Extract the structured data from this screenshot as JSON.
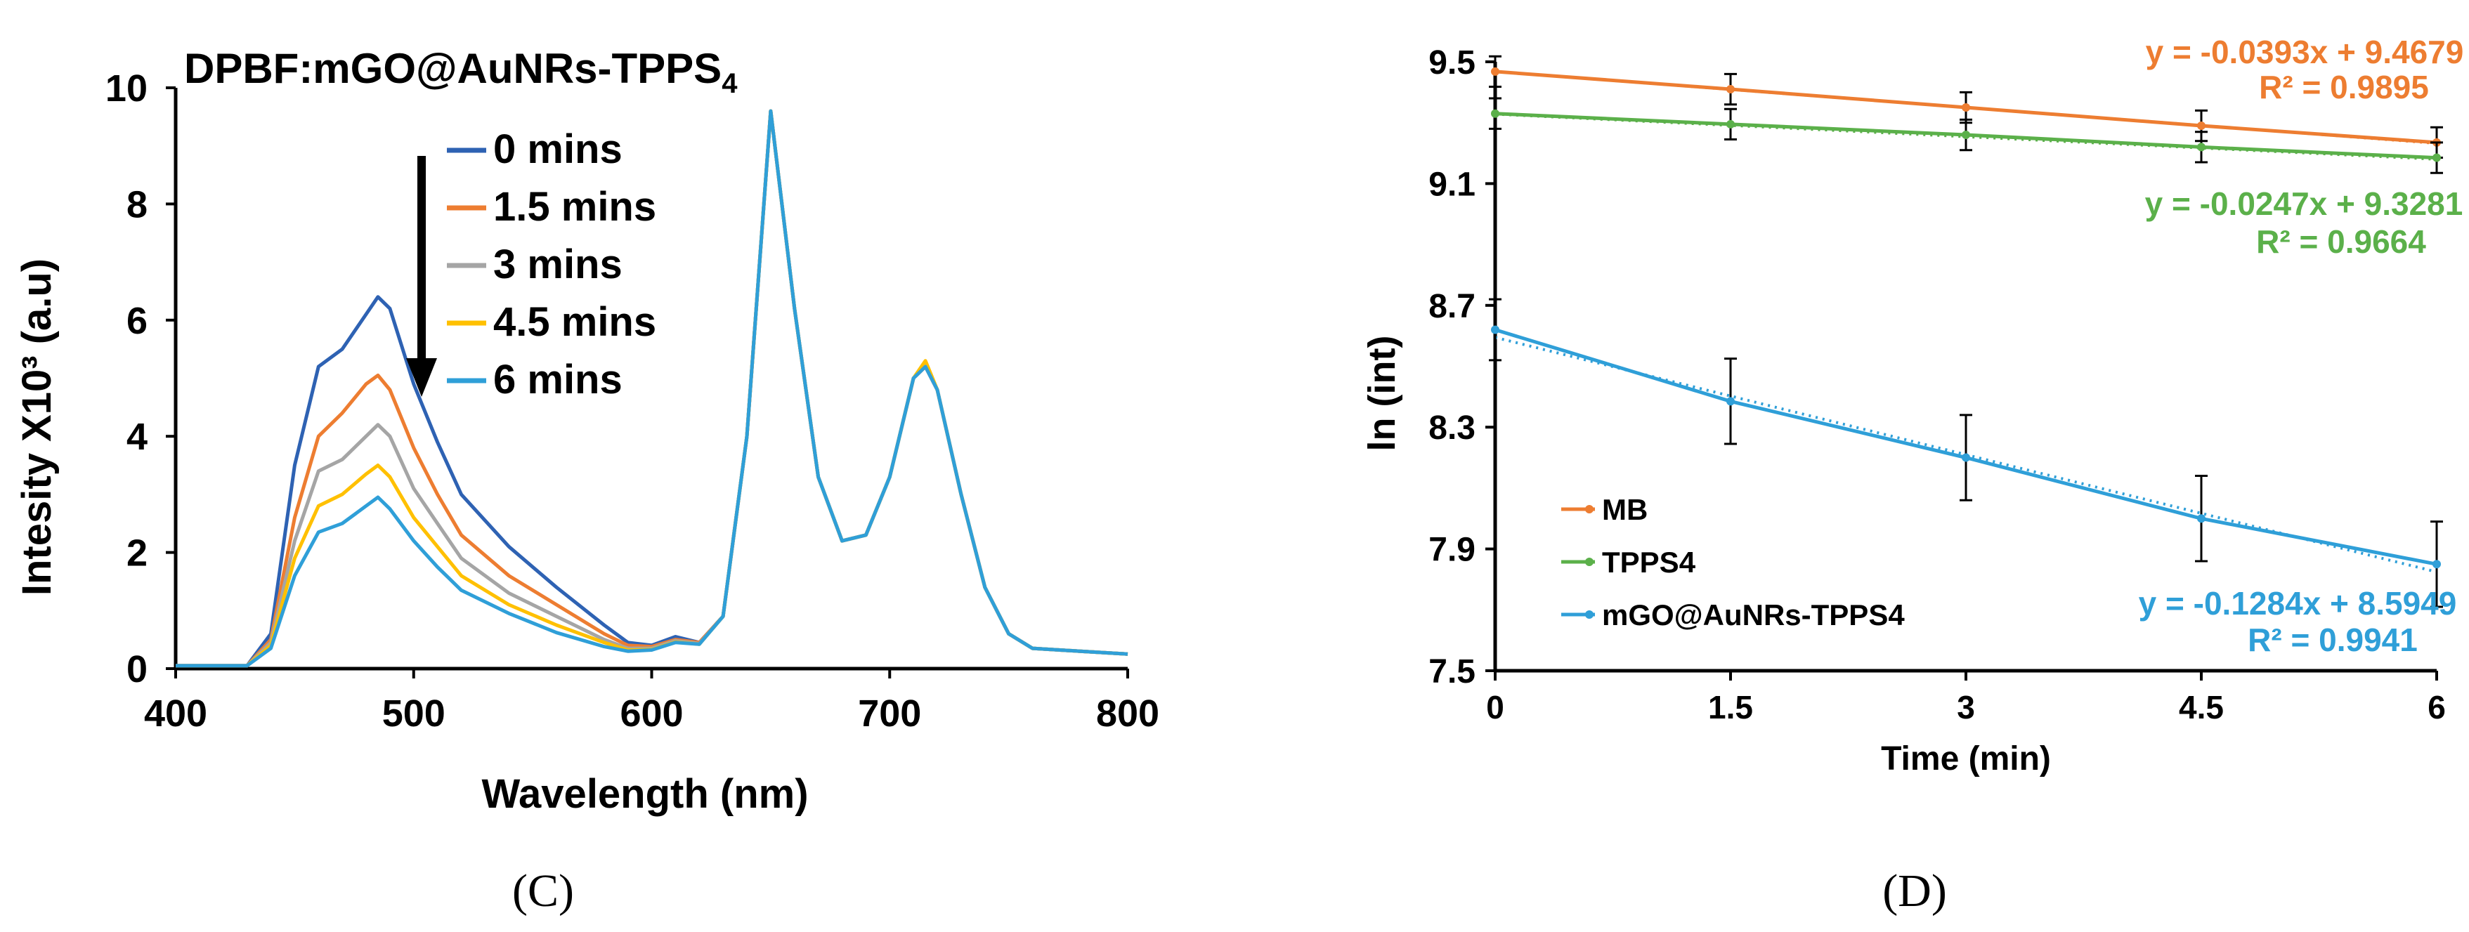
{
  "chart_data": [
    {
      "type": "line",
      "panel_label": "(C)",
      "title": "DPBF:mGO@AuNRs-TPPS",
      "title_subscript": "4",
      "xlabel": "Wavelength (nm)",
      "ylabel": "Intesity X10³ (a.u)",
      "xlim": [
        400,
        800
      ],
      "ylim": [
        0,
        10
      ],
      "xticks": [
        "400",
        "500",
        "600",
        "700",
        "800"
      ],
      "yticks": [
        "0",
        "2",
        "4",
        "6",
        "8",
        "10"
      ],
      "legend": {
        "placement": "upper-middle",
        "arrow": "down"
      },
      "series": [
        {
          "name": "0 mins",
          "color": "#2E62B3",
          "x": [
            400,
            430,
            440,
            450,
            460,
            470,
            480,
            485,
            490,
            500,
            510,
            520,
            540,
            560,
            580,
            590,
            600,
            610,
            620,
            630,
            640,
            650,
            660,
            670,
            680,
            690,
            700,
            710,
            715,
            720,
            730,
            740,
            750,
            760,
            780,
            800
          ],
          "y": [
            0.05,
            0.05,
            0.6,
            3.5,
            5.2,
            5.5,
            6.1,
            6.4,
            6.2,
            4.9,
            3.9,
            3.0,
            2.1,
            1.4,
            0.75,
            0.45,
            0.4,
            0.55,
            0.45,
            0.9,
            4.0,
            9.6,
            6.2,
            3.3,
            2.2,
            2.3,
            3.3,
            5.0,
            5.2,
            4.8,
            3.0,
            1.4,
            0.6,
            0.35,
            0.3,
            0.25
          ]
        },
        {
          "name": "1.5 mins",
          "color": "#ED7D31",
          "x": [
            400,
            430,
            440,
            450,
            460,
            470,
            480,
            485,
            490,
            500,
            510,
            520,
            540,
            560,
            580,
            590,
            600,
            610,
            620,
            630,
            640,
            650,
            660,
            670,
            680,
            690,
            700,
            710,
            715,
            720,
            730,
            740,
            750,
            760,
            780,
            800
          ],
          "y": [
            0.05,
            0.05,
            0.5,
            2.6,
            4.0,
            4.4,
            4.9,
            5.05,
            4.8,
            3.8,
            3.0,
            2.3,
            1.6,
            1.1,
            0.6,
            0.4,
            0.38,
            0.5,
            0.45,
            0.9,
            4.0,
            9.6,
            6.2,
            3.3,
            2.2,
            2.3,
            3.3,
            5.0,
            5.2,
            4.8,
            3.0,
            1.4,
            0.6,
            0.35,
            0.3,
            0.25
          ]
        },
        {
          "name": "3 mins",
          "color": "#A5A5A5",
          "x": [
            400,
            430,
            440,
            450,
            460,
            470,
            480,
            485,
            490,
            500,
            510,
            520,
            540,
            560,
            580,
            590,
            600,
            610,
            620,
            630,
            640,
            650,
            660,
            670,
            680,
            690,
            700,
            710,
            715,
            720,
            730,
            740,
            750,
            760,
            780,
            800
          ],
          "y": [
            0.05,
            0.05,
            0.45,
            2.2,
            3.4,
            3.6,
            4.0,
            4.2,
            4.0,
            3.1,
            2.5,
            1.9,
            1.3,
            0.9,
            0.5,
            0.35,
            0.35,
            0.48,
            0.43,
            0.9,
            4.0,
            9.6,
            6.2,
            3.3,
            2.2,
            2.3,
            3.3,
            5.0,
            5.2,
            4.8,
            3.0,
            1.4,
            0.6,
            0.35,
            0.3,
            0.25
          ]
        },
        {
          "name": "4.5 mins",
          "color": "#FFC000",
          "x": [
            400,
            430,
            440,
            450,
            460,
            470,
            480,
            485,
            490,
            500,
            510,
            520,
            540,
            560,
            580,
            590,
            600,
            610,
            620,
            630,
            640,
            650,
            660,
            670,
            680,
            690,
            700,
            710,
            715,
            720,
            730,
            740,
            750,
            760,
            780,
            800
          ],
          "y": [
            0.05,
            0.05,
            0.4,
            1.9,
            2.8,
            3.0,
            3.35,
            3.5,
            3.3,
            2.6,
            2.1,
            1.6,
            1.1,
            0.75,
            0.45,
            0.32,
            0.33,
            0.46,
            0.42,
            0.9,
            4.0,
            9.6,
            6.2,
            3.3,
            2.2,
            2.3,
            3.3,
            5.0,
            5.3,
            4.8,
            3.0,
            1.4,
            0.6,
            0.35,
            0.3,
            0.25
          ]
        },
        {
          "name": "6 mins",
          "color": "#2F9FD8",
          "x": [
            400,
            430,
            440,
            450,
            460,
            470,
            480,
            485,
            490,
            500,
            510,
            520,
            540,
            560,
            580,
            590,
            600,
            610,
            620,
            630,
            640,
            650,
            660,
            670,
            680,
            690,
            700,
            710,
            715,
            720,
            730,
            740,
            750,
            760,
            780,
            800
          ],
          "y": [
            0.05,
            0.05,
            0.35,
            1.6,
            2.35,
            2.5,
            2.8,
            2.95,
            2.75,
            2.2,
            1.75,
            1.35,
            0.95,
            0.62,
            0.38,
            0.3,
            0.32,
            0.45,
            0.42,
            0.9,
            4.0,
            9.6,
            6.2,
            3.3,
            2.2,
            2.3,
            3.3,
            5.0,
            5.2,
            4.8,
            3.0,
            1.4,
            0.6,
            0.35,
            0.3,
            0.25
          ]
        }
      ]
    },
    {
      "type": "line",
      "panel_label": "(D)",
      "title": "",
      "xlabel": "Time (min)",
      "ylabel": "ln (int)",
      "xlim": [
        0,
        6
      ],
      "ylim": [
        7.5,
        9.5
      ],
      "xticks": [
        "0",
        "1.5",
        "3",
        "4.5",
        "6"
      ],
      "yticks": [
        "7.5",
        "7.9",
        "8.3",
        "8.7",
        "9.1",
        "9.5"
      ],
      "legend": {
        "placement": "bottom-left"
      },
      "series": [
        {
          "name": "MB",
          "color": "#ED7D31",
          "x": [
            0,
            1.5,
            3,
            4.5,
            6
          ],
          "y": [
            9.468,
            9.41,
            9.35,
            9.29,
            9.235
          ],
          "yerr": [
            0.05,
            0.05,
            0.05,
            0.05,
            0.05
          ],
          "trendline": {
            "equation": "y = -0.0393x + 9.4679",
            "r2": "R² = 0.9895",
            "slope": -0.0393,
            "intercept": 9.4679
          }
        },
        {
          "name": "TPPS4",
          "color": "#5BB04A",
          "x": [
            0,
            1.5,
            3,
            4.5,
            6
          ],
          "y": [
            9.33,
            9.295,
            9.26,
            9.22,
            9.185
          ],
          "yerr": [
            0.05,
            0.05,
            0.05,
            0.05,
            0.05
          ],
          "trendline": {
            "equation": "y = -0.0247x + 9.3281",
            "r2": "R² = 0.9664",
            "slope": -0.0247,
            "intercept": 9.3281
          }
        },
        {
          "name": "mGO@AuNRs-TPPS4",
          "color": "#2F9FD8",
          "x": [
            0,
            1.5,
            3,
            4.5,
            6
          ],
          "y": [
            8.62,
            8.385,
            8.2,
            8.0,
            7.85
          ],
          "yerr": [
            0.1,
            0.14,
            0.14,
            0.14,
            0.14
          ],
          "trendline": {
            "equation": "y = -0.1284x + 8.5949",
            "r2": "R² = 0.9941",
            "slope": -0.1284,
            "intercept": 8.5949
          }
        }
      ]
    }
  ]
}
